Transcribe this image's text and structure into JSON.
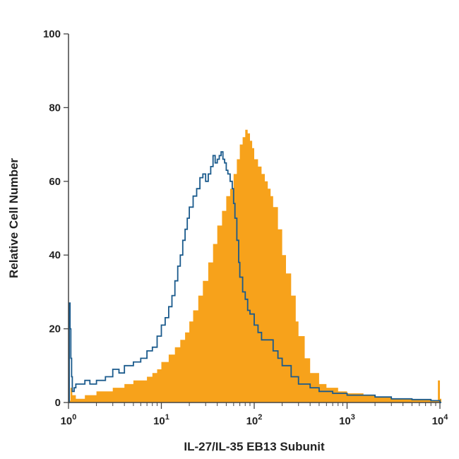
{
  "chart_data": {
    "type": "area",
    "xlabel": "IL-27/IL-35 EB13 Subunit",
    "ylabel": "Relative Cell Number",
    "x_scale": "log",
    "xlim": [
      1,
      10000
    ],
    "ylim": [
      0,
      100
    ],
    "x_ticks": [
      1,
      10,
      100,
      1000,
      10000
    ],
    "x_tick_bases": [
      "10",
      "10",
      "10",
      "10",
      "10"
    ],
    "x_tick_exponents": [
      "0",
      "1",
      "2",
      "3",
      "4"
    ],
    "y_ticks": [
      0,
      20,
      40,
      60,
      80,
      100
    ],
    "y_tick_labels": [
      "0",
      "20",
      "40",
      "60",
      "80",
      "100"
    ],
    "grid": false,
    "series": [
      {
        "style": "filled histogram",
        "color": "#f7a21b",
        "x": [
          1,
          1.05,
          1.1,
          1.2,
          1.5,
          2,
          3,
          4,
          5,
          6,
          7,
          8,
          9,
          10,
          12,
          14,
          16,
          18,
          20,
          22,
          25,
          28,
          32,
          36,
          40,
          45,
          50,
          55,
          60,
          65,
          70,
          75,
          80,
          85,
          90,
          95,
          100,
          110,
          120,
          130,
          140,
          150,
          160,
          180,
          200,
          220,
          250,
          280,
          300,
          350,
          400,
          500,
          600,
          800,
          1000,
          1500,
          2000,
          3000,
          5000,
          8000,
          9500,
          10000
        ],
        "values": [
          0.5,
          4,
          2,
          1,
          2,
          3,
          4,
          5,
          6,
          6,
          7,
          8,
          9,
          11,
          13,
          15,
          17,
          19,
          22,
          25,
          29,
          33,
          38,
          43,
          48,
          52,
          56,
          58,
          62,
          66,
          70,
          72,
          74,
          73,
          71,
          69,
          66,
          64,
          62,
          60,
          58,
          56,
          53,
          47,
          40,
          35,
          29,
          22,
          18,
          12,
          8,
          5,
          4,
          3,
          2.5,
          2,
          1.5,
          1,
          0.8,
          0.5,
          6,
          1
        ]
      },
      {
        "style": "outline",
        "color": "#1a5a8c",
        "x": [
          1,
          1.02,
          1.04,
          1.06,
          1.08,
          1.1,
          1.15,
          1.2,
          1.3,
          1.5,
          1.7,
          2,
          2.5,
          3,
          3.5,
          4,
          5,
          6,
          7,
          8,
          9,
          10,
          11,
          12,
          13,
          14,
          15,
          16,
          17,
          18,
          19,
          20,
          22,
          24,
          26,
          28,
          30,
          32,
          34,
          36,
          38,
          40,
          42,
          44,
          46,
          48,
          50,
          52,
          55,
          58,
          60,
          62,
          65,
          68,
          70,
          75,
          80,
          85,
          90,
          95,
          100,
          110,
          120,
          140,
          160,
          180,
          200,
          250,
          300,
          400,
          500,
          700,
          1000,
          2000,
          3000,
          5000,
          8000,
          10000
        ],
        "values": [
          0,
          27,
          20,
          12,
          7,
          3,
          4,
          5,
          5,
          6,
          5,
          6,
          7,
          9,
          8,
          10,
          11,
          12,
          14,
          15,
          18,
          21,
          23,
          26,
          29,
          33,
          37,
          40,
          44,
          47,
          50,
          53,
          56,
          58,
          61,
          62,
          60,
          62,
          64,
          67,
          65,
          66,
          67,
          68,
          66,
          65,
          63,
          62,
          60,
          58,
          54,
          50,
          44,
          38,
          34,
          30,
          28,
          25,
          24,
          24,
          21,
          19,
          17,
          17,
          14,
          12,
          10,
          7,
          5,
          4,
          3,
          2.5,
          2,
          1.5,
          1,
          0.8,
          0.5,
          0
        ]
      }
    ]
  }
}
